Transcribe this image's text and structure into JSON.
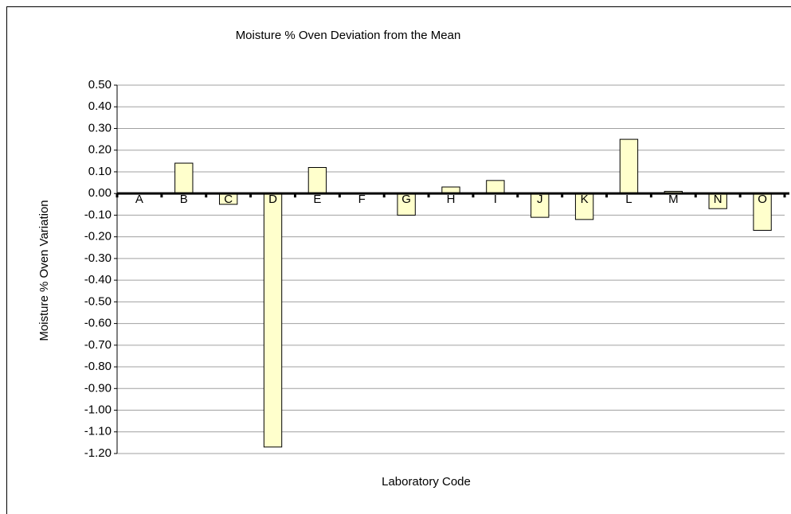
{
  "chart_data": {
    "type": "bar",
    "title": "Moisture % Oven Deviation from the Mean",
    "x_label": "Laboratory Code",
    "y_label": "Moisture % Oven Variation",
    "categories": [
      "A",
      "B",
      "C",
      "D",
      "E",
      "F",
      "G",
      "H",
      "I",
      "J",
      "K",
      "L",
      "M",
      "N",
      "O"
    ],
    "values": [
      0,
      0.14,
      -0.05,
      -1.17,
      0.12,
      0,
      -0.1,
      0.03,
      0.06,
      -0.11,
      -0.12,
      0.25,
      0.01,
      -0.07,
      -0.17
    ],
    "color": "#ffffcc",
    "ylim": [
      -1.2,
      0.5
    ],
    "yticks": [
      {
        "value": 0.5,
        "label": "0.50"
      },
      {
        "value": 0.4,
        "label": "0.40"
      },
      {
        "value": 0.3,
        "label": "0.30"
      },
      {
        "value": 0.2,
        "label": "0.20"
      },
      {
        "value": 0.1,
        "label": "0.10"
      },
      {
        "value": 0,
        "label": "0.00"
      },
      {
        "value": -0.1,
        "label": "-0.10"
      },
      {
        "value": -0.2,
        "label": "-0.20"
      },
      {
        "value": -0.3,
        "label": "-0.30"
      },
      {
        "value": -0.4,
        "label": "-0.40"
      },
      {
        "value": -0.5,
        "label": "-0.50"
      },
      {
        "value": -0.6,
        "label": "-0.60"
      },
      {
        "value": -0.7,
        "label": "-0.70"
      },
      {
        "value": -0.8,
        "label": "-0.80"
      },
      {
        "value": -0.9,
        "label": "-0.90"
      },
      {
        "value": -1.0,
        "label": "-1.00"
      },
      {
        "value": -1.1,
        "label": "-1.10"
      },
      {
        "value": -1.2,
        "label": "-1.20"
      }
    ],
    "grid": true
  }
}
